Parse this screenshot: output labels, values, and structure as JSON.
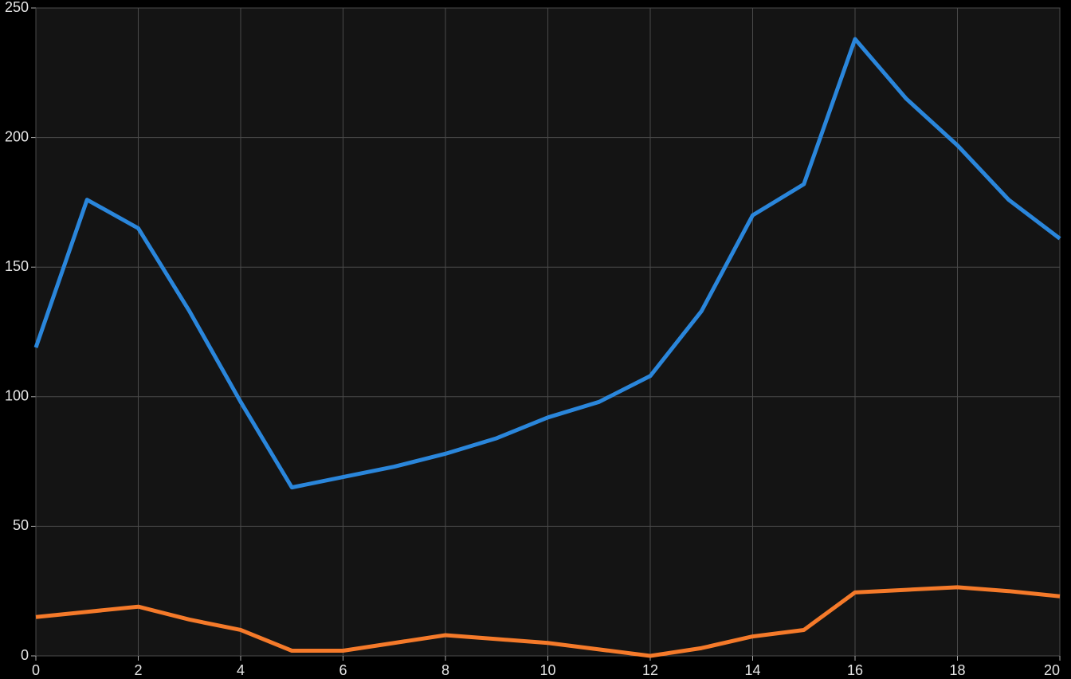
{
  "chart_data": {
    "type": "line",
    "x": [
      0,
      1,
      2,
      3,
      4,
      5,
      6,
      7,
      8,
      9,
      10,
      11,
      12,
      13,
      14,
      15,
      16,
      17,
      18,
      19,
      20
    ],
    "series": [
      {
        "color": "#2a86db",
        "values": [
          119,
          176,
          165,
          133,
          98,
          65,
          69,
          73,
          78,
          84,
          92,
          98,
          108,
          133,
          170,
          182,
          238,
          215,
          197,
          176,
          161
        ]
      },
      {
        "color": "#f57a2a",
        "values": [
          15,
          17,
          19,
          14,
          10,
          2,
          2,
          5,
          8,
          6.5,
          5,
          2.5,
          0,
          3,
          7.5,
          10,
          24.5,
          25.5,
          26.5,
          25,
          23
        ]
      }
    ],
    "xlim": [
      0,
      20
    ],
    "xticks": [
      0,
      2,
      4,
      6,
      8,
      10,
      12,
      14,
      16,
      18,
      20
    ],
    "ylim": [
      0,
      250
    ],
    "yticks": [
      0,
      50,
      100,
      150,
      200,
      250
    ],
    "grid": true
  }
}
